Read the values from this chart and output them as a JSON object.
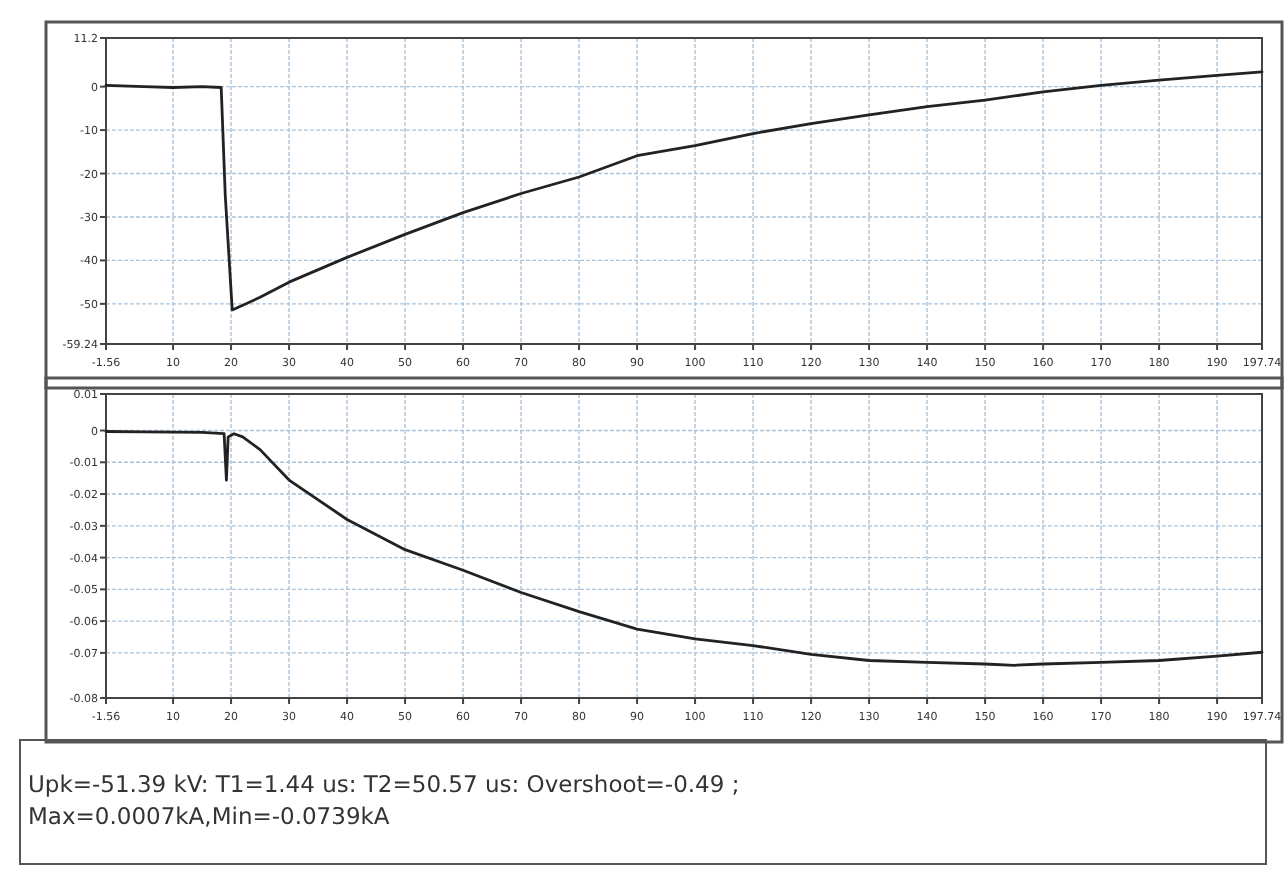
{
  "chart_data": [
    {
      "type": "line",
      "x": [
        -1.56,
        5,
        10,
        15,
        18.3,
        19.0,
        20.2,
        25,
        30,
        40,
        50,
        60,
        70,
        80,
        90,
        100,
        110,
        120,
        130,
        140,
        150,
        160,
        170,
        180,
        190,
        197.74
      ],
      "series": [
        {
          "color": "#222222",
          "values": [
            0.3,
            0,
            -0.2,
            0,
            -0.2,
            -25,
            -51.4,
            -48.5,
            -45,
            -39.3,
            -34,
            -29,
            -24.6,
            -20.8,
            -15.9,
            -13.6,
            -10.8,
            -8.5,
            -6.5,
            -4.6,
            -3.1,
            -1.2,
            0.3,
            1.5,
            2.6,
            3.4
          ]
        }
      ],
      "xlim": [
        -1.56,
        197.74
      ],
      "ylim": [
        -59.24,
        11.2
      ],
      "xticks": [
        -1.56,
        10,
        20,
        30,
        40,
        50,
        60,
        70,
        80,
        90,
        100,
        110,
        120,
        130,
        140,
        150,
        160,
        170,
        180,
        190,
        197.74
      ],
      "yticks": [
        -59.24,
        -50,
        -40,
        -30,
        -20,
        -10,
        0,
        11.2
      ],
      "grid": true
    },
    {
      "type": "line",
      "x": [
        -1.56,
        5,
        10,
        15,
        18.8,
        19.2,
        19.5,
        20.5,
        22,
        25,
        30,
        40,
        50,
        60,
        70,
        80,
        90,
        100,
        110,
        120,
        130,
        140,
        150,
        155,
        160,
        170,
        180,
        190,
        197.74
      ],
      "series": [
        {
          "color": "#222222",
          "values": [
            -0.0003,
            -0.0004,
            -0.0005,
            -0.0006,
            -0.001,
            -0.0156,
            -0.002,
            -0.001,
            -0.002,
            -0.006,
            -0.0156,
            -0.028,
            -0.0375,
            -0.044,
            -0.051,
            -0.057,
            -0.0625,
            -0.0656,
            -0.0677,
            -0.0705,
            -0.0724,
            -0.073,
            -0.0735,
            -0.0739,
            -0.0735,
            -0.073,
            -0.0724,
            -0.071,
            -0.0698
          ]
        }
      ],
      "xlim": [
        -1.56,
        197.74
      ],
      "ylim": [
        -0.0842,
        0.0115
      ],
      "xticks": [
        -1.56,
        10,
        20,
        30,
        40,
        50,
        60,
        70,
        80,
        90,
        100,
        110,
        120,
        130,
        140,
        150,
        160,
        170,
        180,
        190,
        197.74
      ],
      "yticks": [
        {
          "value": -0.0842,
          "label": "-0.08"
        },
        -0.07,
        -0.06,
        -0.05,
        -0.04,
        -0.03,
        -0.02,
        -0.01,
        0,
        {
          "value": 0.0115,
          "label": "0.01"
        }
      ],
      "grid": true,
      "annotations": [
        "Upk=-51.39 kV: T1=1.44 us: T2=50.57 us: Overshoot=-0.49  ;",
        "Max=0.0007kA,Min=-0.0739kA"
      ]
    }
  ]
}
